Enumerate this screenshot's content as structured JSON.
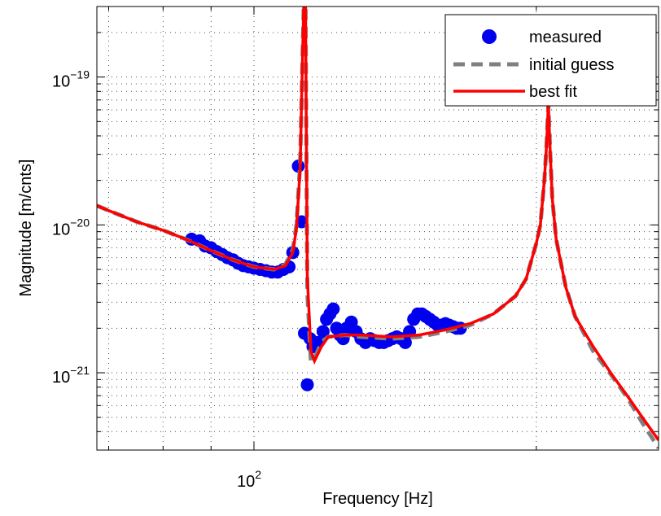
{
  "chart_data": {
    "type": "line",
    "xlabel": "Frequency [Hz]",
    "ylabel": "Magnitude [m/cnts]",
    "x_scale": "log",
    "y_scale": "log",
    "xlim": [
      68,
      270
    ],
    "ylim": [
      3e-22,
      3e-19
    ],
    "grid": true,
    "legend_position": "top-right",
    "x_ticks": [
      {
        "value": 100,
        "base": "10",
        "exp": "2"
      }
    ],
    "y_ticks": [
      {
        "value": 1e-21,
        "base": "10",
        "exp": "−21"
      },
      {
        "value": 1e-20,
        "base": "10",
        "exp": "−20"
      },
      {
        "value": 1e-19,
        "base": "10",
        "exp": "−19"
      }
    ],
    "series": [
      {
        "name": "measured",
        "style": "markers",
        "color": "#0000ee",
        "x": [
          85.8,
          87.5,
          88.7,
          90.0,
          91.3,
          92.5,
          93.7,
          95.0,
          96.2,
          97.4,
          98.7,
          100.0,
          101.5,
          103.0,
          104.5,
          106.0,
          107.5,
          109.0,
          110.0,
          111.5,
          112.4,
          113.2,
          114.0,
          114.8,
          115.6,
          117.0,
          118.5,
          119.5,
          120.5,
          121.5,
          122.5,
          123.5,
          124.5,
          125.5,
          127.0,
          128.5,
          130.0,
          131.5,
          133.0,
          134.5,
          136.0,
          137.5,
          139.0,
          140.5,
          142.0,
          143.5,
          145.0,
          146.5,
          148.0,
          149.5,
          151.0,
          152.5,
          154.0,
          155.5,
          157.0,
          158.5,
          160.0,
          161.5,
          163.0,
          164.5,
          166.0
        ],
        "y": [
          8e-21,
          7.8e-21,
          7.2e-21,
          7e-21,
          6.6e-21,
          6.3e-21,
          6e-21,
          5.8e-21,
          5.5e-21,
          5.3e-21,
          5.2e-21,
          5.1e-21,
          5e-21,
          4.9e-21,
          4.8e-21,
          4.8e-21,
          5e-21,
          5.2e-21,
          6.5e-21,
          2.5e-20,
          1.05e-20,
          1.85e-21,
          8.3e-22,
          1.7e-21,
          1.5e-21,
          1.6e-21,
          1.9e-21,
          2.3e-21,
          2.5e-21,
          2.7e-21,
          2e-21,
          1.8e-21,
          1.7e-21,
          2e-21,
          2.2e-21,
          1.9e-21,
          1.7e-21,
          1.6e-21,
          1.7e-21,
          1.65e-21,
          1.6e-21,
          1.6e-21,
          1.65e-21,
          1.7e-21,
          1.75e-21,
          1.7e-21,
          1.6e-21,
          1.9e-21,
          2.3e-21,
          2.5e-21,
          2.5e-21,
          2.4e-21,
          2.3e-21,
          2.2e-21,
          2.1e-21,
          2.1e-21,
          2.15e-21,
          2.1e-21,
          2.05e-21,
          2e-21,
          2e-21
        ]
      },
      {
        "name": "initial guess",
        "style": "dashed",
        "color": "#808080",
        "x": [
          68,
          70,
          75,
          80,
          85,
          90,
          95,
          100,
          105,
          108,
          110,
          111,
          112,
          112.5,
          113,
          113.5,
          114,
          115,
          116,
          118,
          120,
          125,
          130,
          140,
          150,
          160,
          170,
          180,
          190,
          195,
          200,
          202,
          204,
          205,
          206,
          207,
          208,
          210,
          215,
          220,
          230,
          240,
          250,
          260,
          270
        ],
        "y": [
          1.35e-20,
          1.25e-20,
          1.05e-20,
          9.2e-21,
          7.9e-21,
          6.7e-21,
          5.8e-21,
          5.2e-21,
          5e-21,
          5.4e-21,
          6.8e-21,
          1e-20,
          2.6e-20,
          9e-20,
          3e-19,
          3e-19,
          3.5e-21,
          1.2e-21,
          1.25e-21,
          1.6e-21,
          1.75e-21,
          1.8e-21,
          1.75e-21,
          1.7e-21,
          1.75e-21,
          1.9e-21,
          2.1e-21,
          2.5e-21,
          3.3e-21,
          4.3e-21,
          7.5e-21,
          1e-20,
          2e-20,
          3.3e-20,
          6.5e-20,
          3e-20,
          1.5e-20,
          8e-21,
          3.8e-21,
          2.4e-21,
          1.4e-21,
          9.8e-22,
          6.8e-22,
          4.5e-22,
          3.1e-22
        ]
      },
      {
        "name": "best fit",
        "style": "solid",
        "color": "#ff0000",
        "x": [
          68,
          70,
          75,
          80,
          85,
          90,
          95,
          100,
          105,
          108,
          110,
          111,
          112,
          112.5,
          113,
          113.5,
          114,
          115,
          116,
          118,
          120,
          125,
          130,
          140,
          150,
          160,
          170,
          180,
          190,
          195,
          200,
          202,
          204,
          205,
          206,
          207,
          208,
          210,
          215,
          220,
          230,
          240,
          250,
          260,
          270
        ],
        "y": [
          1.35e-20,
          1.25e-20,
          1.05e-20,
          9.2e-21,
          7.9e-21,
          6.7e-21,
          5.8e-21,
          5.2e-21,
          5e-21,
          5.3e-21,
          6.5e-21,
          9.5e-21,
          2.4e-20,
          9e-20,
          3e-19,
          3e-19,
          4.5e-21,
          1.4e-21,
          1.2e-21,
          1.5e-21,
          1.75e-21,
          1.8e-21,
          1.8e-21,
          1.75e-21,
          1.8e-21,
          1.95e-21,
          2.15e-21,
          2.5e-21,
          3.3e-21,
          4.3e-21,
          7.5e-21,
          1e-20,
          2e-20,
          3.3e-20,
          6.5e-20,
          3e-20,
          1.5e-20,
          8e-21,
          3.8e-21,
          2.4e-21,
          1.5e-21,
          1e-21,
          7e-22,
          4.9e-22,
          3.5e-22
        ]
      }
    ]
  }
}
